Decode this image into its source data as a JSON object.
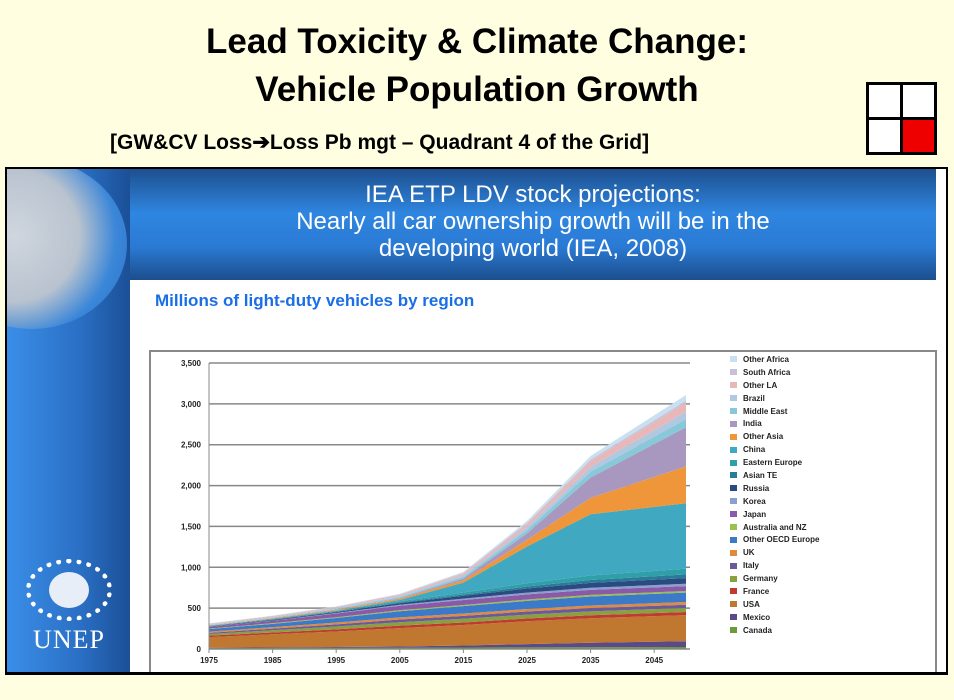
{
  "header": {
    "title_line1": "Lead Toxicity & Climate Change:",
    "title_line2": "Vehicle Population Growth",
    "subtitle": "[GW&CV Loss➔Loss Pb mgt – Quadrant 4 of the Grid]",
    "grid_icon": "2x2 grid, quadrant 4 highlighted",
    "highlight_color": "#ee0000"
  },
  "slide": {
    "banner_lines": [
      "IEA ETP LDV stock projections:",
      "Nearly all car ownership growth will be in the",
      "developing world (IEA, 2008)"
    ],
    "logo_text": "UNEP"
  },
  "chart_data": {
    "type": "area",
    "stacked": true,
    "title": "Millions of light-duty vehicles by region",
    "xlabel": "",
    "ylabel": "",
    "x": [
      1975,
      1985,
      1995,
      2005,
      2015,
      2025,
      2035,
      2050
    ],
    "xticks": [
      "1975",
      "1985",
      "1995",
      "2005",
      "2015",
      "2025",
      "2035",
      "2045"
    ],
    "ylim": [
      0,
      3500
    ],
    "yticks": [
      "0",
      "500",
      "1,000",
      "1,500",
      "2,000",
      "2,500",
      "3,000",
      "3,500"
    ],
    "grid": true,
    "legend": "right",
    "series": [
      {
        "name": "Canada",
        "color": "#6a9a3a",
        "values": [
          10,
          12,
          14,
          16,
          18,
          20,
          22,
          25
        ]
      },
      {
        "name": "Mexico",
        "color": "#5a4a8a",
        "values": [
          5,
          8,
          10,
          15,
          25,
          40,
          55,
          70
        ]
      },
      {
        "name": "USA",
        "color": "#c07830",
        "values": [
          130,
          160,
          190,
          225,
          250,
          280,
          300,
          320
        ]
      },
      {
        "name": "France",
        "color": "#c03a30",
        "values": [
          18,
          22,
          26,
          30,
          32,
          34,
          36,
          38
        ]
      },
      {
        "name": "Germany",
        "color": "#8aa040",
        "values": [
          20,
          28,
          35,
          42,
          45,
          47,
          48,
          48
        ]
      },
      {
        "name": "Italy",
        "color": "#6a5a9a",
        "values": [
          15,
          20,
          27,
          33,
          36,
          38,
          40,
          40
        ]
      },
      {
        "name": "UK",
        "color": "#e08a40",
        "values": [
          15,
          18,
          22,
          26,
          28,
          30,
          32,
          34
        ]
      },
      {
        "name": "Other OECD Europe",
        "color": "#3a7ac8",
        "values": [
          30,
          40,
          55,
          75,
          90,
          100,
          110,
          115
        ]
      },
      {
        "name": "Australia and NZ",
        "color": "#9ac050",
        "values": [
          6,
          8,
          10,
          13,
          15,
          17,
          19,
          20
        ]
      },
      {
        "name": "Japan",
        "color": "#8a5aa8",
        "values": [
          20,
          30,
          45,
          55,
          60,
          62,
          62,
          60
        ]
      },
      {
        "name": "Korea",
        "color": "#8aa0d0",
        "values": [
          1,
          2,
          6,
          12,
          18,
          22,
          25,
          28
        ]
      },
      {
        "name": "Russia",
        "color": "#2a4a80",
        "values": [
          5,
          8,
          12,
          20,
          35,
          50,
          60,
          70
        ]
      },
      {
        "name": "Asian TE",
        "color": "#2a7a9a",
        "values": [
          3,
          4,
          5,
          8,
          15,
          25,
          35,
          45
        ]
      },
      {
        "name": "Eastern Europe",
        "color": "#30a0a8",
        "values": [
          5,
          8,
          10,
          15,
          25,
          40,
          55,
          70
        ]
      },
      {
        "name": "China",
        "color": "#40a8c0",
        "values": [
          1,
          1,
          2,
          15,
          120,
          450,
          750,
          800
        ]
      },
      {
        "name": "Other Asia",
        "color": "#f0963a",
        "values": [
          5,
          7,
          10,
          15,
          30,
          80,
          200,
          450
        ]
      },
      {
        "name": "India",
        "color": "#a898c0",
        "values": [
          2,
          3,
          5,
          8,
          20,
          80,
          250,
          480
        ]
      },
      {
        "name": "Middle East",
        "color": "#88c8d8",
        "values": [
          4,
          6,
          8,
          12,
          20,
          40,
          70,
          100
        ]
      },
      {
        "name": "Brazil",
        "color": "#b0c8e0",
        "values": [
          5,
          7,
          9,
          14,
          20,
          35,
          60,
          90
        ]
      },
      {
        "name": "Other LA",
        "color": "#e8b8b8",
        "values": [
          8,
          10,
          12,
          15,
          22,
          40,
          70,
          110
        ]
      },
      {
        "name": "South Africa",
        "color": "#c8c0d8",
        "values": [
          3,
          3,
          4,
          5,
          8,
          12,
          18,
          25
        ]
      },
      {
        "name": "Other Africa",
        "color": "#c8e0f0",
        "values": [
          3,
          4,
          5,
          7,
          12,
          25,
          45,
          70
        ]
      }
    ]
  }
}
